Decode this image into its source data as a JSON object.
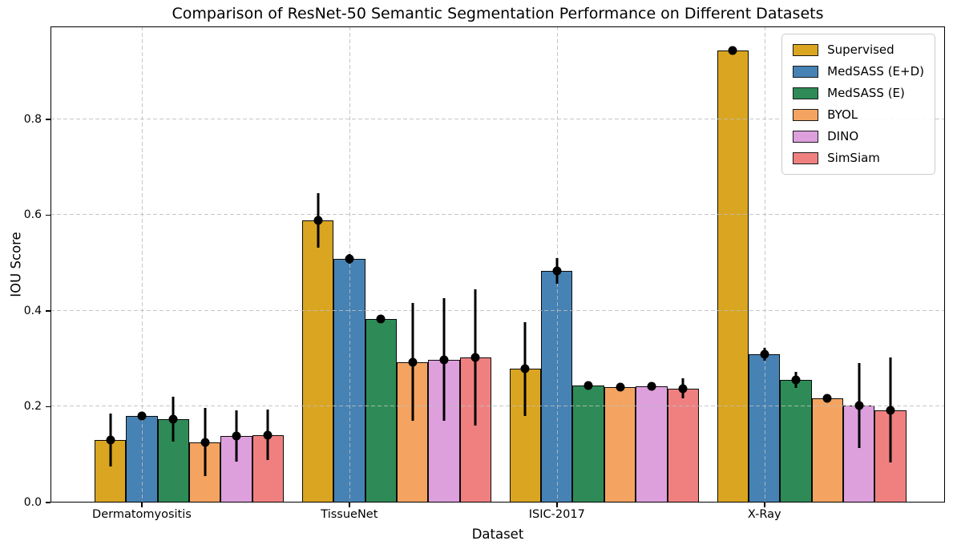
{
  "chart_data": {
    "type": "bar",
    "title": "Comparison of ResNet-50 Semantic Segmentation Performance on Different Datasets",
    "xlabel": "Dataset",
    "ylabel": "IOU Score",
    "categories": [
      "Dermatomyositis",
      "TissueNet",
      "ISIC-2017",
      "X-Ray"
    ],
    "series": [
      {
        "name": "Supervised",
        "color": "#DAA520",
        "values": [
          0.131,
          0.589,
          0.279,
          0.943
        ],
        "errors": [
          0.055,
          0.057,
          0.098,
          0.006
        ]
      },
      {
        "name": "MedSASS (E+D)",
        "color": "#4682B4",
        "values": [
          0.181,
          0.508,
          0.484,
          0.31
        ],
        "errors": [
          0.006,
          0.01,
          0.027,
          0.013
        ]
      },
      {
        "name": "MedSASS (E)",
        "color": "#2E8B57",
        "values": [
          0.174,
          0.383,
          0.244,
          0.256
        ],
        "errors": [
          0.047,
          0.008,
          0.005,
          0.017
        ]
      },
      {
        "name": "BYOL",
        "color": "#F4A460",
        "values": [
          0.126,
          0.293,
          0.241,
          0.217
        ],
        "errors": [
          0.071,
          0.123,
          0.005,
          0.006
        ]
      },
      {
        "name": "DINO",
        "color": "#DDA0DD",
        "values": [
          0.139,
          0.298,
          0.243,
          0.203
        ],
        "errors": [
          0.054,
          0.128,
          0.006,
          0.089
        ]
      },
      {
        "name": "SimSiam",
        "color": "#F08080",
        "values": [
          0.141,
          0.303,
          0.238,
          0.193
        ],
        "errors": [
          0.053,
          0.142,
          0.021,
          0.11
        ]
      }
    ],
    "yticks": [
      0.0,
      0.2,
      0.4,
      0.6,
      0.8
    ],
    "ylim": [
      0,
      0.994
    ],
    "xlim": [
      -0.44,
      3.87
    ],
    "grid": true,
    "grid_style": "dashed",
    "error_bars": true,
    "marker": "black-dot",
    "legend_position": "upper right",
    "colors": {
      "bar_edge": "#0a0a0a",
      "grid": "#bdbdbd",
      "error": "#000000",
      "background": "#ffffff"
    }
  }
}
